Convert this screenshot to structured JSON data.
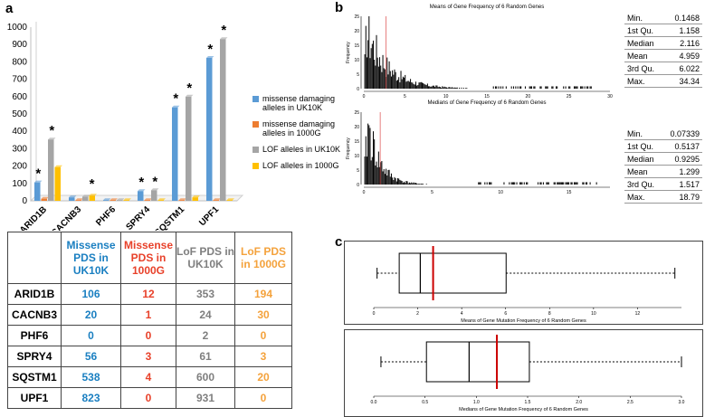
{
  "panel_labels": {
    "a": "a",
    "b": "b",
    "c": "c"
  },
  "legend": [
    {
      "label": "missense damaging alleles in UK10K",
      "color": "#5b9bd5"
    },
    {
      "label": "missense damaging alleles in 1000G",
      "color": "#ed7d31"
    },
    {
      "label": "LOF alleles in UK10K",
      "color": "#a5a5a5"
    },
    {
      "label": "LOF alleles in 1000G",
      "color": "#ffc000"
    }
  ],
  "chart_data": [
    {
      "type": "bar",
      "categories": [
        "ARID1B",
        "CACNB3",
        "PHF6",
        "SPRY4",
        "SQSTM1",
        "UPF1"
      ],
      "series": [
        {
          "name": "missense damaging alleles in UK10K",
          "values": [
            106,
            20,
            0,
            56,
            538,
            823
          ],
          "color": "#5b9bd5"
        },
        {
          "name": "missense damaging alleles in 1000G",
          "values": [
            12,
            1,
            0,
            3,
            4,
            0
          ],
          "color": "#ed7d31"
        },
        {
          "name": "LOF alleles in UK10K",
          "values": [
            353,
            24,
            2,
            61,
            600,
            931
          ],
          "color": "#a5a5a5"
        },
        {
          "name": "LOF alleles in 1000G",
          "values": [
            194,
            30,
            0,
            3,
            20,
            0
          ],
          "color": "#ffc000"
        }
      ],
      "ylim": [
        0,
        1000
      ],
      "yticks": [
        "0",
        "100",
        "200",
        "300",
        "400",
        "500",
        "600",
        "700",
        "800",
        "900",
        "1000"
      ],
      "annotations": "*",
      "grid": false
    },
    {
      "type": "histogram",
      "title": "Means of Gene Frequency of 6 Random Genes",
      "ylabel": "Frequency",
      "xlim": [
        0,
        30
      ],
      "xticks": [
        "0",
        "5",
        "10",
        "15",
        "20",
        "25",
        "30"
      ],
      "ylim": [
        0,
        25
      ],
      "yticks": [
        "0",
        "5",
        "10",
        "15",
        "20",
        "25"
      ],
      "marker_x": 2.7,
      "marker_color": "#e06060"
    },
    {
      "type": "histogram",
      "title": "Medians of Gene Frequency of 6 Random Genes",
      "ylabel": "Frequency",
      "xlim": [
        0,
        18
      ],
      "xticks": [
        "0",
        "5",
        "10",
        "15"
      ],
      "ylim": [
        0,
        25
      ],
      "yticks": [
        "0",
        "5",
        "10",
        "15",
        "20",
        "25"
      ],
      "marker_x": 1.2,
      "marker_color": "#e06060"
    },
    {
      "type": "boxplot",
      "xlabel": "Means of Gene Mutation Frequency of 6 Random Genes",
      "xlim": [
        0,
        14
      ],
      "xticks": [
        "0",
        "2",
        "4",
        "6",
        "8",
        "10",
        "12"
      ],
      "whisker_low": 0.15,
      "q1": 1.158,
      "median": 2.116,
      "q3": 6.022,
      "whisker_high": 13.7,
      "marker_x": 2.7,
      "marker_color": "#cc0000"
    },
    {
      "type": "boxplot",
      "xlabel": "Medians of Gene Mutation Frequency of 6 Random Genes",
      "xlim": [
        0,
        3.0
      ],
      "xticks": [
        "0.0",
        "0.5",
        "1.0",
        "1.5",
        "2.0",
        "2.5",
        "3.0"
      ],
      "whisker_low": 0.07,
      "q1": 0.5137,
      "median": 0.9295,
      "q3": 1.517,
      "whisker_high": 3.0,
      "marker_x": 1.2,
      "marker_color": "#cc0000"
    }
  ],
  "pds_table": {
    "headers": [
      {
        "text": "Missense PDS in UK10K",
        "color": "#1a7fc1"
      },
      {
        "text": "Missense PDS in 1000G",
        "color": "#e8412a"
      },
      {
        "text": "LoF PDS in UK10K",
        "color": "#7f7f7f"
      },
      {
        "text": "LoF PDS in 1000G",
        "color": "#f4a23c"
      }
    ],
    "rows": [
      {
        "gene": "ARID1B",
        "values": [
          "106",
          "12",
          "353",
          "194"
        ]
      },
      {
        "gene": "CACNB3",
        "values": [
          "20",
          "1",
          "24",
          "30"
        ]
      },
      {
        "gene": "PHF6",
        "values": [
          "0",
          "0",
          "2",
          "0"
        ]
      },
      {
        "gene": "SPRY4",
        "values": [
          "56",
          "3",
          "61",
          "3"
        ]
      },
      {
        "gene": "SQSTM1",
        "values": [
          "538",
          "4",
          "600",
          "20"
        ]
      },
      {
        "gene": "UPF1",
        "values": [
          "823",
          "0",
          "931",
          "0"
        ]
      }
    ]
  },
  "summary_means": [
    {
      "label": "Min.",
      "value": "0.1468"
    },
    {
      "label": "1st Qu.",
      "value": "1.158"
    },
    {
      "label": "Median",
      "value": "2.116"
    },
    {
      "label": "Mean",
      "value": "4.959"
    },
    {
      "label": "3rd Qu.",
      "value": "6.022"
    },
    {
      "label": "Max.",
      "value": "34.34"
    }
  ],
  "summary_medians": [
    {
      "label": "Min.",
      "value": "0.07339"
    },
    {
      "label": "1st Qu.",
      "value": "0.5137"
    },
    {
      "label": "Median",
      "value": "0.9295"
    },
    {
      "label": "Mean",
      "value": "1.299"
    },
    {
      "label": "3rd Qu.",
      "value": "1.517"
    },
    {
      "label": "Max.",
      "value": "18.79"
    }
  ]
}
